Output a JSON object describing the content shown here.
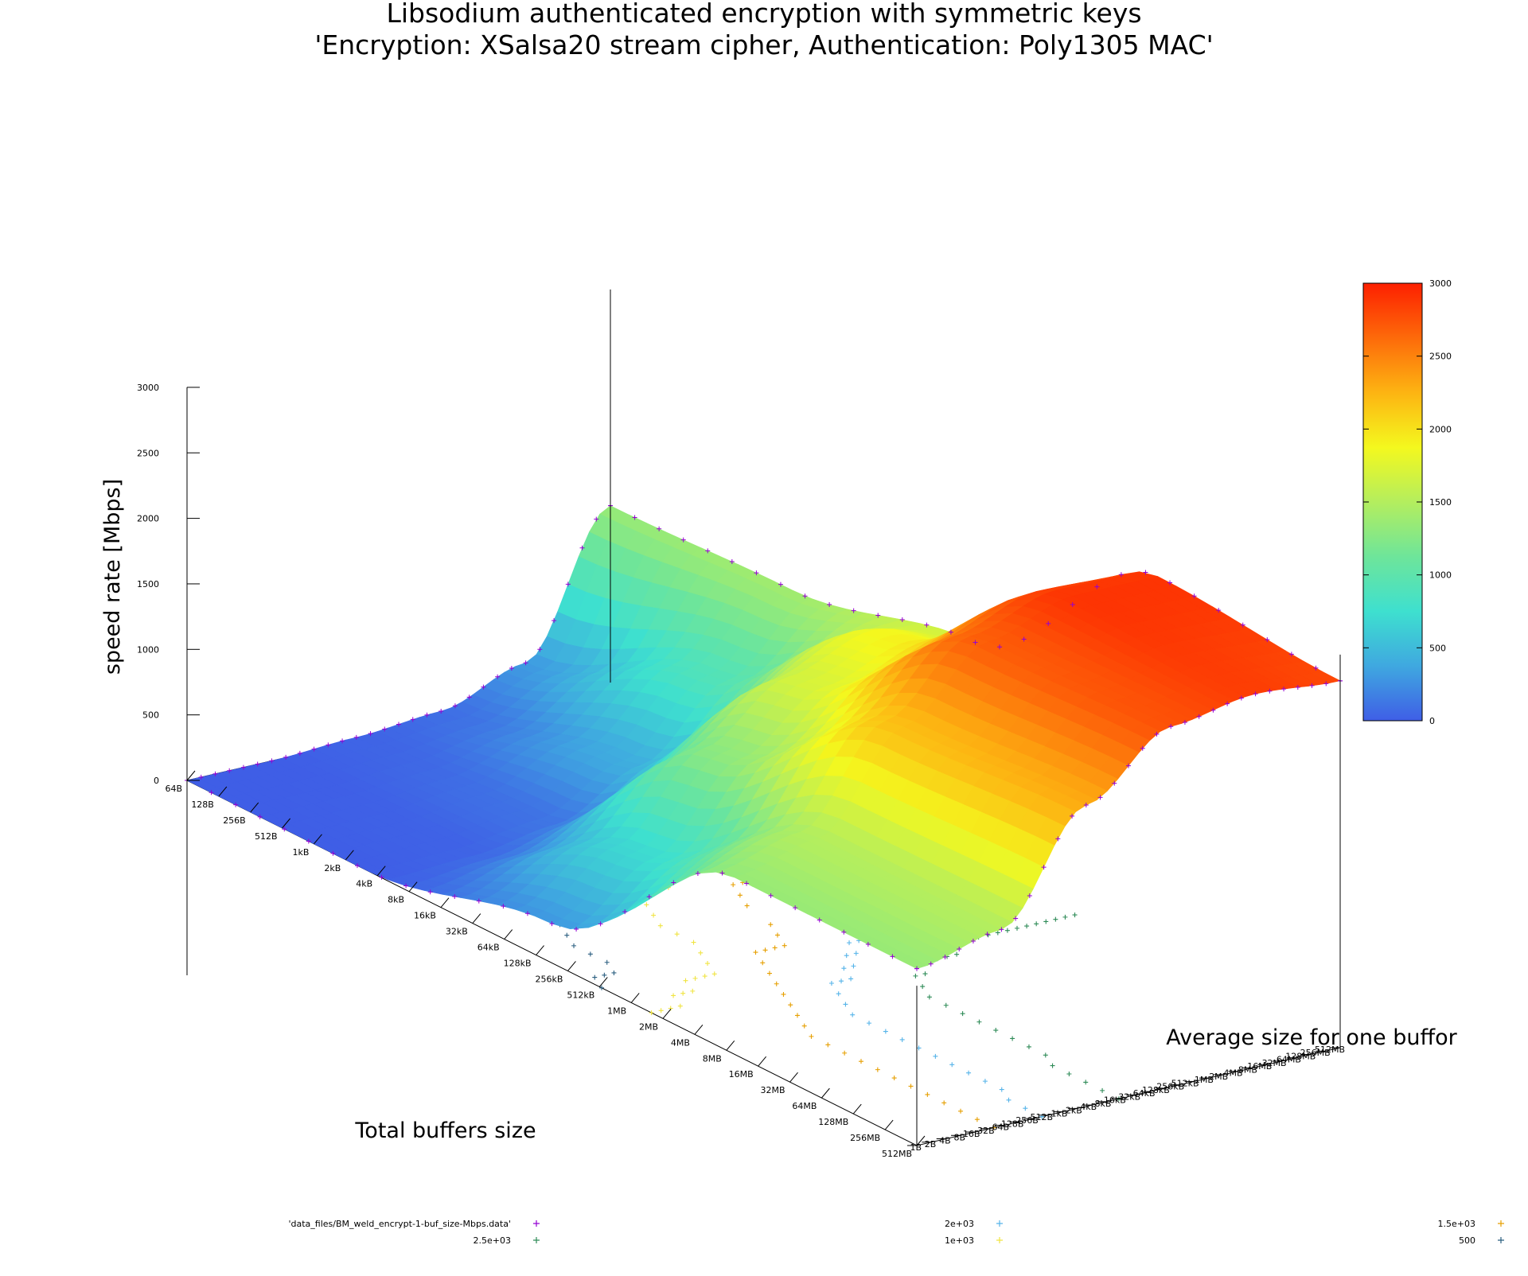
{
  "chart_data": {
    "type": "surface3d",
    "title": "Libsodium authenticated encryption with symmetric keys",
    "subtitle": "'Encryption: XSalsa20 stream cipher, Authentication: Poly1305 MAC'",
    "zlabel": "speed rate [Mbps]",
    "xlabel": "Total buffers size",
    "ylabel": "Average size for one buffor",
    "zlim": [
      0,
      3000
    ],
    "z_ticks": [
      "0",
      "500",
      "1000",
      "1500",
      "2000",
      "2500",
      "3000"
    ],
    "x_ticks": [
      "64B",
      "128B",
      "256B",
      "512B",
      "1kB",
      "2kB",
      "4kB",
      "8kB",
      "16kB",
      "32kB",
      "64kB",
      "128kB",
      "256kB",
      "512kB",
      "1MB",
      "2MB",
      "4MB",
      "8MB",
      "16MB",
      "32MB",
      "64MB",
      "128MB",
      "256MB",
      "512MB"
    ],
    "y_ticks": [
      "1B",
      "2B",
      "4B",
      "8B",
      "16B",
      "32B",
      "64B",
      "128B",
      "256B",
      "512B",
      "1kB",
      "2kB",
      "4kB",
      "8kB",
      "16kB",
      "32kB",
      "64kB",
      "128kB",
      "256kB",
      "512kB",
      "1MB",
      "2MB",
      "4MB",
      "8MB",
      "16MB",
      "32MB",
      "64MB",
      "128MB",
      "256MB",
      "512MB"
    ],
    "colorbar": {
      "range": [
        0,
        3000
      ],
      "ticks": [
        "0",
        "500",
        "1000",
        "1500",
        "2000",
        "2500",
        "3000"
      ],
      "colors": [
        "#3f5ee6",
        "#3fa8e0",
        "#3ee0cf",
        "#6ee59a",
        "#b4ee5e",
        "#f4f81e",
        "#fdb412",
        "#fd6a0a",
        "#fd2000"
      ]
    },
    "surface_grid": {
      "rows_y": [
        "1B",
        "64B",
        "4kB",
        "256kB",
        "16MB",
        "512MB"
      ],
      "cols_x": [
        "64B",
        "4kB",
        "256kB",
        "16MB",
        "512MB"
      ],
      "z": [
        [
          0,
          0,
          300,
          1350,
          1350
        ],
        [
          0,
          20,
          700,
          1500,
          1500
        ],
        [
          30,
          100,
          1300,
          2200,
          2300
        ],
        [
          80,
          400,
          1700,
          2700,
          2750
        ],
        [
          300,
          900,
          1900,
          2900,
          2850
        ],
        [
          1350,
          1400,
          1700,
          2900,
          2800
        ]
      ]
    },
    "contours": [
      {
        "name": "2.5e+03",
        "level": 2500,
        "color": "#2e8b57"
      },
      {
        "name": "2e+03",
        "level": 2000,
        "color": "#56b4e9"
      },
      {
        "name": "1.5e+03",
        "level": 1500,
        "color": "#e69f00"
      },
      {
        "name": "1e+03",
        "level": 1000,
        "color": "#f0e442"
      },
      {
        "name": "500",
        "level": 500,
        "color": "#2b5f80"
      }
    ],
    "legend": [
      {
        "label": "'data_files/BM_weld_encrypt-1-buf_size-Mbps.data'",
        "color": "#9400d3"
      },
      {
        "label": "2.5e+03",
        "color": "#2e8b57"
      },
      {
        "label": "2e+03",
        "color": "#56b4e9"
      },
      {
        "label": "1.5e+03",
        "color": "#e69f00"
      },
      {
        "label": "1e+03",
        "color": "#f0e442"
      },
      {
        "label": "500",
        "color": "#2b5f80"
      }
    ],
    "legend_position": "bottom"
  }
}
